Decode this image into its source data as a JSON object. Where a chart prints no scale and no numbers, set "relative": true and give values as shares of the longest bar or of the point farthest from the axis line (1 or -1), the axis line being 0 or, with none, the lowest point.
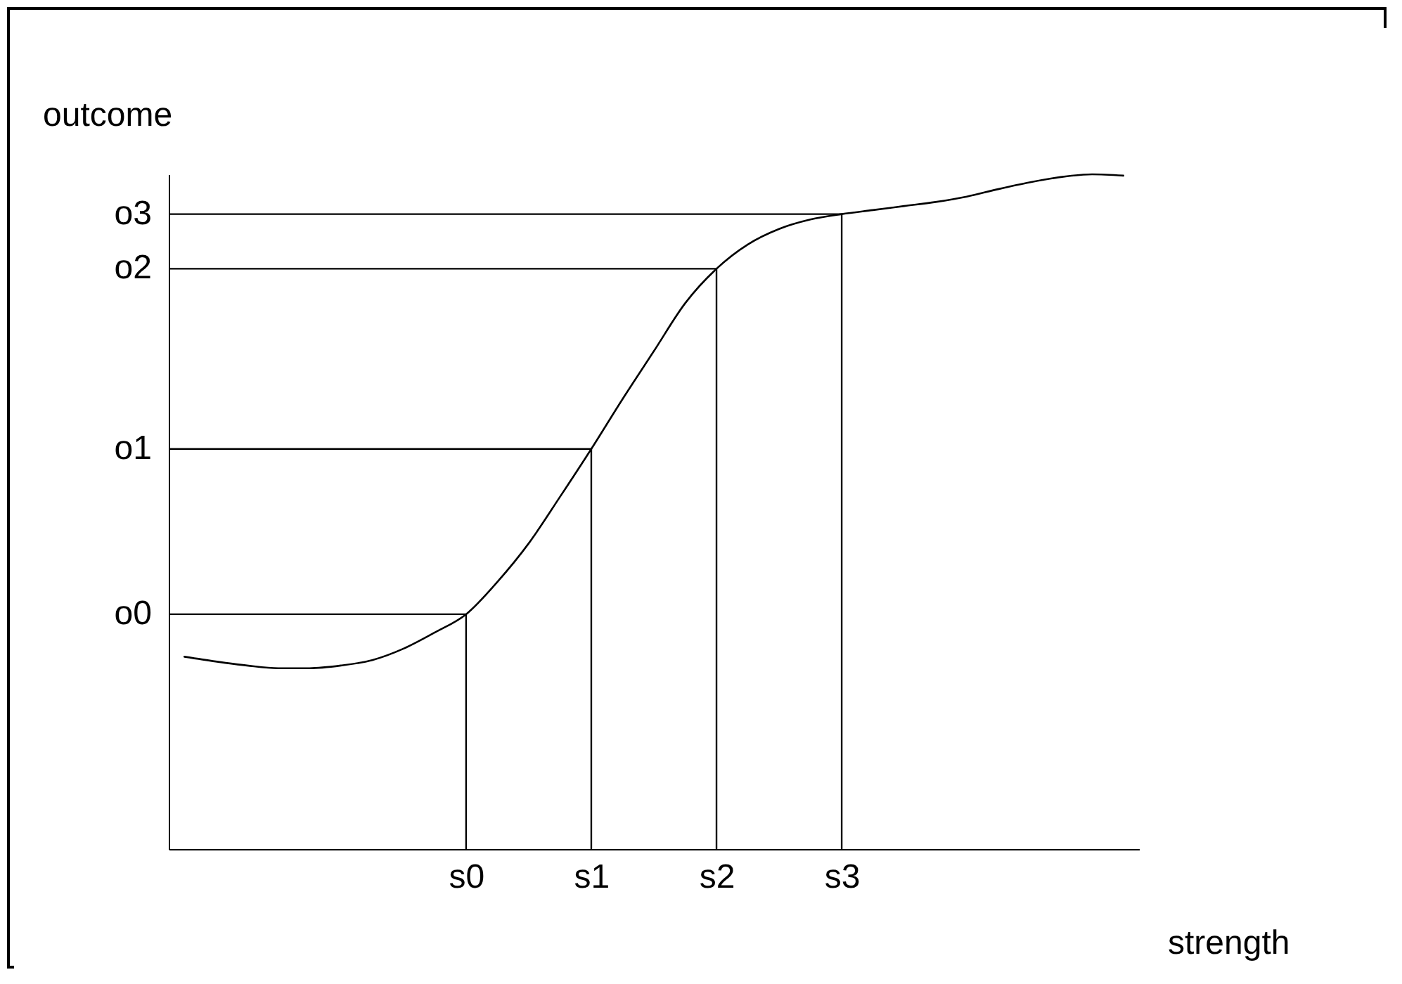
{
  "chart_data": {
    "type": "line",
    "xlabel": "strength",
    "ylabel": "outcome",
    "relative": true,
    "categories": [
      null,
      null,
      null,
      null,
      null,
      null,
      null,
      null,
      null,
      "s0",
      null,
      null,
      null,
      "s1",
      null,
      null,
      null,
      "s2",
      null,
      null,
      null,
      "s3",
      null,
      null,
      null,
      null,
      null,
      null,
      null,
      null,
      null
    ],
    "grid": false,
    "marker": "none",
    "line_style": "solid",
    "series": [
      {
        "color": "#000000",
        "values": [
          0.285,
          0.278,
          0.272,
          0.268,
          0.268,
          0.272,
          0.28,
          0.297,
          0.321,
          0.348,
          0.396,
          0.453,
          0.522,
          0.593,
          0.667,
          0.738,
          0.809,
          0.86,
          0.896,
          0.919,
          0.933,
          0.941,
          0.947,
          0.953,
          0.959,
          0.967,
          0.978,
          0.988,
          0.996,
          1.0,
          0.998
        ]
      }
    ],
    "ref_lines": [
      {
        "axis": "x",
        "value": "s0",
        "color": "#000000"
      },
      {
        "axis": "x",
        "value": "s1",
        "color": "#000000"
      },
      {
        "axis": "x",
        "value": "s2",
        "color": "#000000"
      },
      {
        "axis": "x",
        "value": "s3",
        "color": "#000000"
      },
      {
        "axis": "y",
        "value": 0.348,
        "label": "o0",
        "color": "#000000"
      },
      {
        "axis": "y",
        "value": 0.593,
        "label": "o1",
        "color": "#000000"
      },
      {
        "axis": "y",
        "value": 0.86,
        "label": "o2",
        "color": "#000000"
      },
      {
        "axis": "y",
        "value": 0.941,
        "label": "o3",
        "color": "#000000"
      }
    ]
  }
}
